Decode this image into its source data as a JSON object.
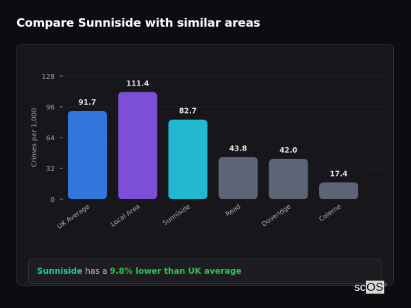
{
  "title": "Compare Sunniside with similar areas",
  "chart_data": {
    "type": "bar",
    "categories": [
      "UK Average",
      "Local Area",
      "Sunniside",
      "Read",
      "Doveridge",
      "Colerne"
    ],
    "values": [
      91.7,
      111.4,
      82.7,
      43.8,
      42.0,
      17.4
    ],
    "value_labels": [
      "91.7",
      "111.4",
      "82.7",
      "43.8",
      "42.0",
      "17.4"
    ],
    "colors": [
      "#3275dc",
      "#7b4fd6",
      "#22b8cf",
      "#5b6577",
      "#5b6577",
      "#5b6577"
    ],
    "xlabel": "",
    "ylabel": "Crimes per 1,000",
    "ylim": [
      0,
      128
    ],
    "yticks": [
      0,
      32,
      64,
      96,
      128
    ],
    "grid": true
  },
  "summary": {
    "area": "Sunniside",
    "middle": " has a ",
    "comparison": "9.8% lower than UK average",
    "area_color": "#20c997",
    "comparison_color": "#2fbf57"
  },
  "logo": {
    "text_a": "sc",
    "text_b": "OS",
    "mark": "®"
  }
}
